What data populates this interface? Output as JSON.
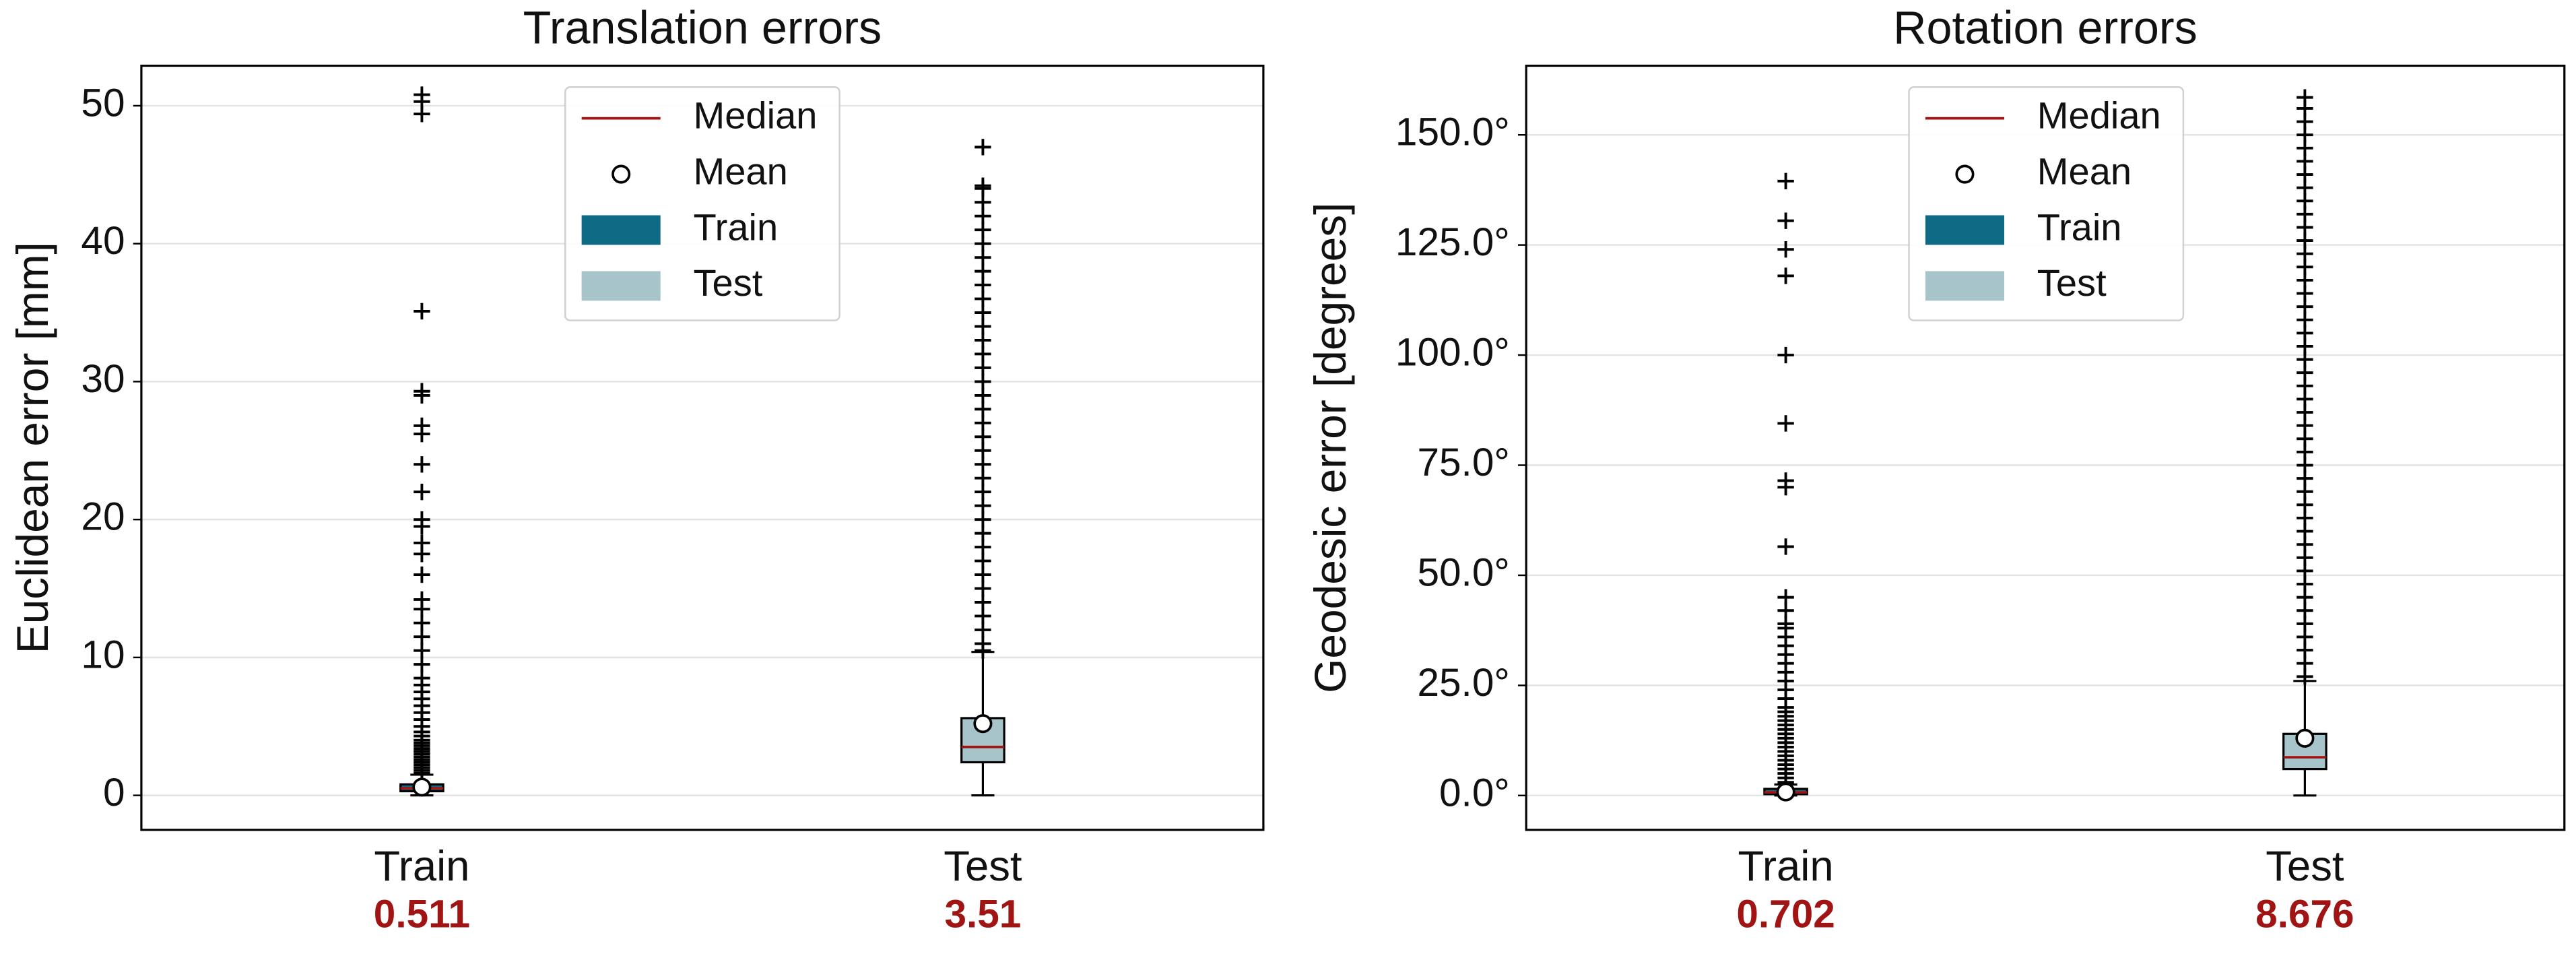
{
  "chart_data": [
    {
      "type": "box",
      "title": "Translation errors",
      "ylabel": "Euclidean error [mm]",
      "categories": [
        "Train",
        "Test"
      ],
      "ylim": [
        -2.5,
        52.9
      ],
      "yticks": [
        0,
        10,
        20,
        30,
        40,
        50
      ],
      "grid": true,
      "median_legend": "Median",
      "mean_legend": "Mean",
      "median_color": "#a01414",
      "series": [
        {
          "name": "Train",
          "color": "#0f6a85",
          "whislo": 0,
          "q1": 0.3,
          "median": 0.511,
          "q3": 0.8,
          "whishi": 1.5,
          "mean": 0.6,
          "outliers": [
            1.6,
            1.8,
            2,
            2.2,
            2.4,
            2.6,
            2.8,
            3,
            3.2,
            3.4,
            3.6,
            3.8,
            4,
            4.3,
            4.6,
            5,
            5.5,
            6,
            6.5,
            7,
            7.5,
            8,
            8.5,
            9.5,
            10.5,
            11.5,
            12.5,
            13.5,
            14.2,
            16,
            17.5,
            18.3,
            19.5,
            20,
            22,
            24,
            26.2,
            26.8,
            29,
            29.3,
            35.1,
            49.4,
            50.3,
            50.8
          ]
        },
        {
          "name": "Test",
          "color": "#a6c4c9",
          "whislo": 0,
          "q1": 2.4,
          "median": 3.51,
          "q3": 5.6,
          "whishi": 10.4,
          "mean": 5.2,
          "outliers": [
            10.5,
            11,
            12,
            13,
            14,
            15,
            16,
            17,
            18,
            19,
            20,
            21,
            22,
            23,
            24,
            25,
            26,
            27,
            28,
            29,
            30,
            31,
            32,
            33,
            34,
            35,
            36,
            37,
            38,
            39,
            40,
            41,
            42,
            43,
            44,
            44.2,
            47
          ]
        }
      ]
    },
    {
      "type": "box",
      "title": "Rotation errors",
      "ylabel": "Geodesic error [degrees]",
      "categories": [
        "Train",
        "Test"
      ],
      "ylim": [
        -7.8,
        165.7
      ],
      "yticks": [
        {
          "value": 0,
          "label": "0.0°"
        },
        {
          "value": 25,
          "label": "25.0°"
        },
        {
          "value": 50,
          "label": "50.0°"
        },
        {
          "value": 75,
          "label": "75.0°"
        },
        {
          "value": 100,
          "label": "100.0°"
        },
        {
          "value": 125,
          "label": "125.0°"
        },
        {
          "value": 150,
          "label": "150.0°"
        }
      ],
      "grid": true,
      "median_legend": "Median",
      "mean_legend": "Mean",
      "median_color": "#a01414",
      "series": [
        {
          "name": "Train",
          "color": "#0f6a85",
          "whislo": 0,
          "q1": 0.3,
          "median": 0.702,
          "q3": 1.5,
          "whishi": 2.5,
          "mean": 0.8,
          "outliers": [
            3,
            4,
            5,
            6,
            7,
            8,
            9,
            10,
            11,
            12,
            13,
            14,
            15,
            16,
            17,
            18,
            19,
            20,
            22,
            24,
            26,
            28,
            30,
            32,
            34,
            36,
            38,
            39,
            42,
            45,
            56.5,
            70,
            71.5,
            84.5,
            100,
            118,
            124,
            130.5,
            139.5
          ]
        },
        {
          "name": "Test",
          "color": "#a6c4c9",
          "whislo": 0,
          "q1": 6,
          "median": 8.676,
          "q3": 14,
          "whishi": 26,
          "mean": 13,
          "outliers": [
            27,
            30,
            33,
            36,
            39,
            42,
            45,
            48,
            51,
            54,
            57,
            60,
            63,
            66,
            69,
            72,
            75,
            78,
            81,
            84,
            87,
            90,
            93,
            96,
            99,
            102,
            105,
            108,
            111,
            114,
            117,
            120,
            123,
            126,
            129,
            132,
            135,
            138,
            141,
            144,
            147,
            150,
            153,
            156,
            158.5
          ]
        }
      ]
    }
  ]
}
